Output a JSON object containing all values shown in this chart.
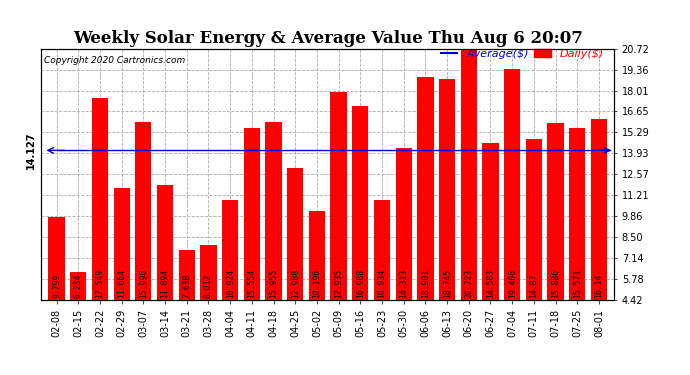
{
  "title": "Weekly Solar Energy & Average Value Thu Aug 6 20:07",
  "copyright": "Copyright 2020 Cartronics.com",
  "categories": [
    "02-08",
    "02-15",
    "02-22",
    "02-29",
    "03-07",
    "03-14",
    "03-21",
    "03-28",
    "04-04",
    "04-11",
    "04-18",
    "04-25",
    "05-02",
    "05-09",
    "05-16",
    "05-23",
    "05-30",
    "06-06",
    "06-13",
    "06-20",
    "06-27",
    "07-04",
    "07-11",
    "07-18",
    "07-25",
    "08-01"
  ],
  "values": [
    9.799,
    6.234,
    17.549,
    11.664,
    15.996,
    11.894,
    7.638,
    8.012,
    10.924,
    15.554,
    15.955,
    12.988,
    10.196,
    17.935,
    16.988,
    10.934,
    14.313,
    18.901,
    18.745,
    20.723,
    14.583,
    19.406,
    14.87,
    15.886,
    15.571,
    16.14
  ],
  "average": 14.127,
  "bar_color": "#ff0000",
  "average_line_color": "#0000cc",
  "background_color": "#ffffff",
  "grid_color": "#aaaaaa",
  "ylabel_right": [
    "4.42",
    "5.78",
    "7.14",
    "8.50",
    "9.86",
    "11.21",
    "12.57",
    "13.93",
    "15.29",
    "16.65",
    "18.01",
    "19.36",
    "20.72"
  ],
  "ymin": 4.42,
  "ymax": 20.72,
  "title_fontsize": 12,
  "tick_fontsize": 7,
  "bar_label_fontsize": 5.8,
  "average_label": "14.127",
  "legend_average_label": "Average($)",
  "legend_daily_label": "Daily($)"
}
